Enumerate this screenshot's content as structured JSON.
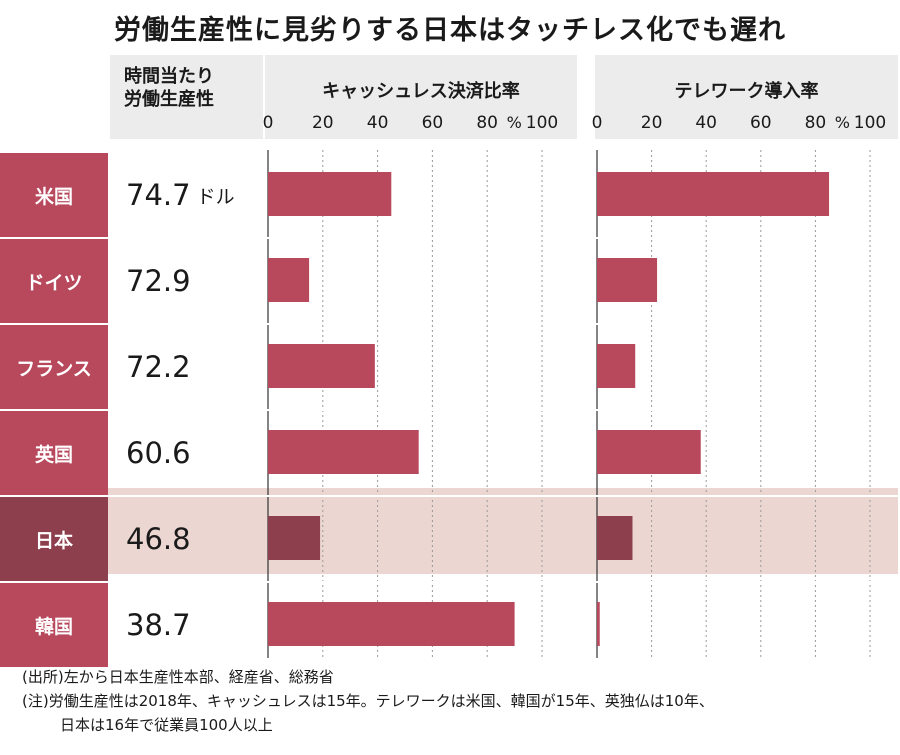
{
  "title": "労働生産性に見劣りする日本はタッチレス化でも遅れ",
  "productivity_header": "時間当たり\n労働生産性",
  "productivity_unit": "ドル",
  "chart_data": [
    {
      "type": "bar",
      "title": "キャッシュレス決済比率",
      "xlim": [
        0,
        100
      ],
      "ticks": [
        0,
        20,
        40,
        60,
        80,
        100
      ],
      "tick_labels": [
        "0",
        "20",
        "40",
        "60",
        "80",
        "100"
      ],
      "unit": "%",
      "categories": [
        "米国",
        "ドイツ",
        "フランス",
        "英国",
        "日本",
        "韓国"
      ],
      "values": [
        45,
        15,
        39,
        55,
        19,
        90
      ]
    },
    {
      "type": "bar",
      "title": "テレワーク導入率",
      "xlim": [
        0,
        100
      ],
      "ticks": [
        0,
        20,
        40,
        60,
        80,
        100
      ],
      "tick_labels": [
        "0",
        "20",
        "40",
        "60",
        "80",
        "100"
      ],
      "unit": "%",
      "categories": [
        "米国",
        "ドイツ",
        "フランス",
        "英国",
        "日本",
        "韓国"
      ],
      "values": [
        85,
        22,
        14,
        38,
        13,
        1
      ]
    }
  ],
  "rows": [
    {
      "country": "米国",
      "productivity": "74.7"
    },
    {
      "country": "ドイツ",
      "productivity": "72.9"
    },
    {
      "country": "フランス",
      "productivity": "72.2"
    },
    {
      "country": "英国",
      "productivity": "60.6"
    },
    {
      "country": "日本",
      "productivity": "46.8"
    },
    {
      "country": "韓国",
      "productivity": "38.7"
    }
  ],
  "colors": {
    "bar": "#b8485c",
    "bar_japan": "#8d3f4d",
    "highlight": "#ecd6d1",
    "header": "#ececec"
  },
  "notes": {
    "source": "(出所)左から日本生産性本部、経産省、総務省",
    "note_line1": "(注)労働生産性は2018年、キャッシュレスは15年。テレワークは米国、韓国が15年、英独仏は10年、",
    "note_line2": "日本は16年で従業員100人以上"
  }
}
